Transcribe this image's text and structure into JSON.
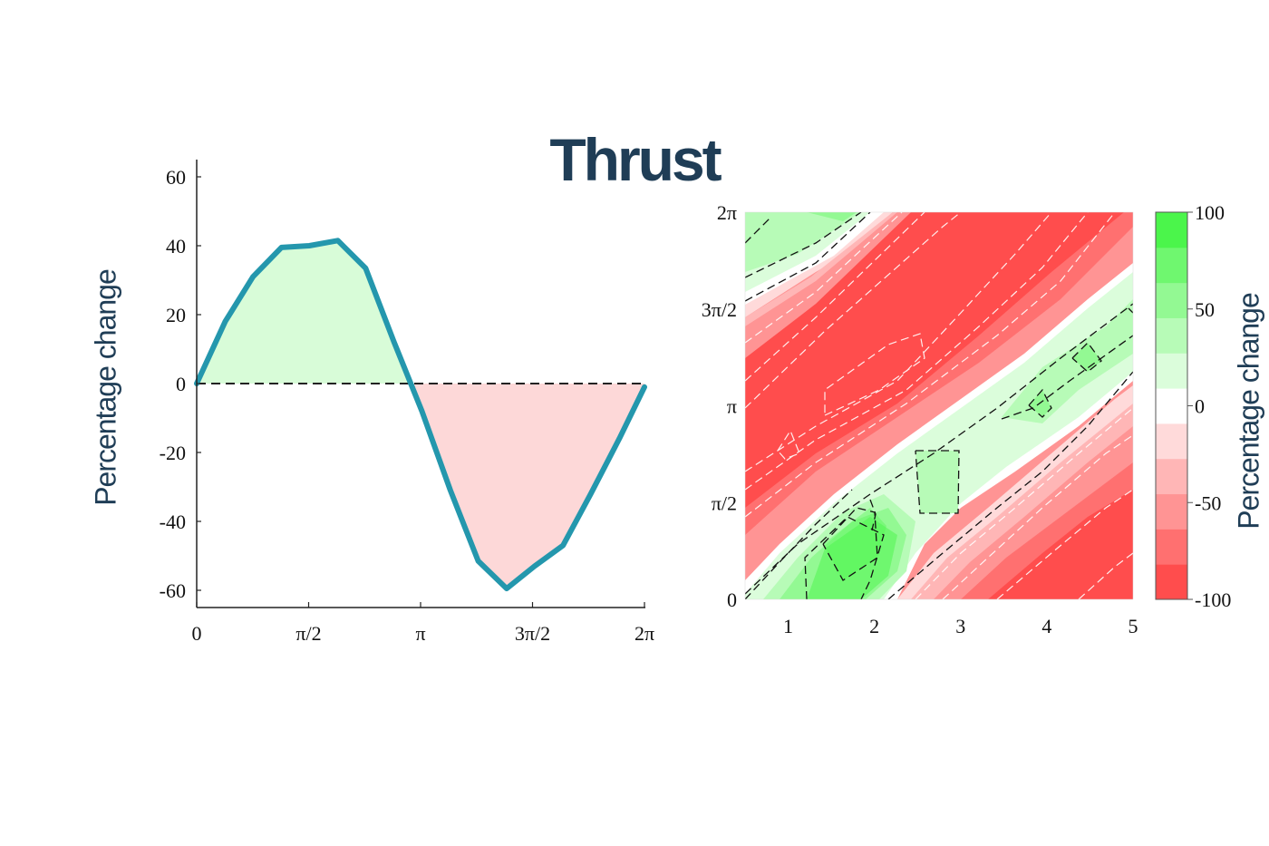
{
  "title": "Thrust",
  "colors": {
    "line": "#2497ad",
    "positive_fill": "#d8fcd8",
    "negative_fill": "#fdd8d8",
    "title": "#1f3d56"
  },
  "chart_data": [
    {
      "type": "area",
      "title": "Thrust",
      "xlabel": "",
      "ylabel": "Percentage change",
      "ylim": [
        -65,
        65
      ],
      "xlim": [
        0,
        6.2832
      ],
      "grid": false,
      "x_tick_labels": [
        "0",
        "π/2",
        "π",
        "3π/2",
        "2π"
      ],
      "y_tick_labels": [
        "60",
        "40",
        "20",
        "0",
        "-20",
        "-40",
        "-60"
      ],
      "reference_line": {
        "y": 0,
        "style": "dashed"
      },
      "x": [
        0,
        0.4,
        0.79,
        1.19,
        1.58,
        1.98,
        2.37,
        2.77,
        3.16,
        3.56,
        3.95,
        4.35,
        4.74,
        5.14,
        5.53,
        5.93,
        6.2832
      ],
      "values": [
        0,
        18,
        31,
        39.5,
        40,
        41.5,
        33.5,
        12,
        -8,
        -31,
        -51.5,
        -59.5,
        -53,
        -47,
        -32,
        -16,
        -1
      ]
    },
    {
      "type": "heatmap",
      "subtype": "filled-contour",
      "xlabel": "",
      "ylabel": "",
      "x_tick_labels": [
        "1",
        "2",
        "3",
        "4",
        "5"
      ],
      "y_tick_labels": [
        "0",
        "π/2",
        "π",
        "3π/2",
        "2π"
      ],
      "xlim": [
        0.5,
        5
      ],
      "ylim": [
        0,
        6.2832
      ],
      "colorbar": {
        "label": "Percentage change",
        "range": [
          -100,
          100
        ],
        "tick_labels": [
          "100",
          "50",
          "0",
          "-50",
          "-100"
        ],
        "levels": [
          -100,
          -83.3,
          -66.7,
          -50,
          -33.3,
          -16.7,
          0,
          16.7,
          33.3,
          50,
          66.7,
          83.3,
          100
        ],
        "colors": [
          "#ff4d4d",
          "#ff7070",
          "#ff9494",
          "#ffb6b6",
          "#ffdada",
          "#ffffff",
          "#dbfddb",
          "#b7fbb7",
          "#93f993",
          "#6ff76f",
          "#4bf54b"
        ]
      },
      "description": "Diagonal bands: red (negative) band running from lower-left to upper-right through the upper-left region, green (positive) band along the diagonal from (1.5,0) to (5,5π/4), red band in lower-right; positive peak ~+80 near (1.8, π/4); negative minimum ~-100 near (1.8, 1.2π)"
    }
  ]
}
